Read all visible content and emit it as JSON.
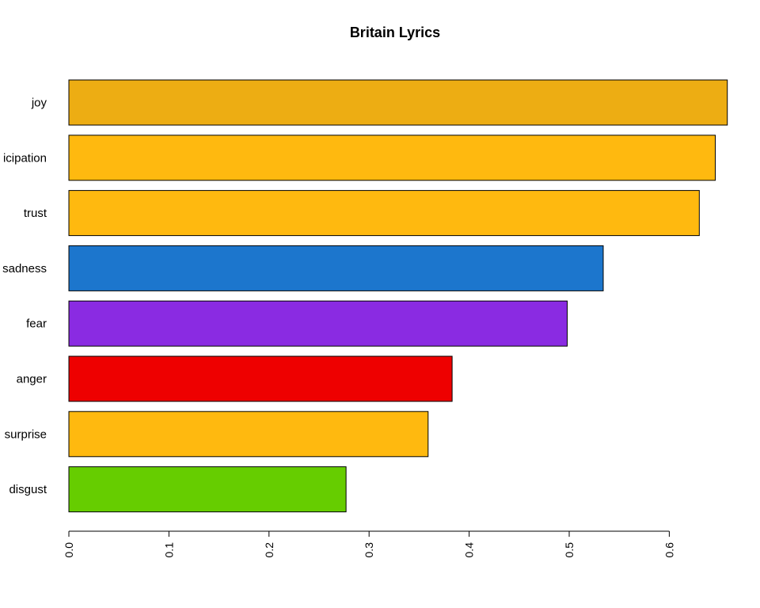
{
  "chart_data": {
    "type": "bar",
    "orientation": "horizontal",
    "title": "Britain Lyrics",
    "xlabel": "",
    "ylabel": "",
    "categories": [
      "joy",
      "anticipation",
      "trust",
      "sadness",
      "fear",
      "anger",
      "surprise",
      "disgust"
    ],
    "category_display": [
      "joy",
      "icipation",
      "trust",
      "sadness",
      "fear",
      "anger",
      "surprise",
      "disgust"
    ],
    "values": [
      0.658,
      0.646,
      0.63,
      0.534,
      0.498,
      0.383,
      0.359,
      0.277
    ],
    "colors": [
      "#EDAD13",
      "#FFB90F",
      "#FFB90F",
      "#1C76CD",
      "#8A2BE2",
      "#EE0000",
      "#FFB90F",
      "#66CD00"
    ],
    "xlim": [
      0,
      0.66
    ],
    "xticks": [
      0,
      0.1,
      0.2,
      0.3,
      0.4,
      0.5,
      0.6
    ],
    "xtick_labels": [
      "0.0",
      "0.1",
      "0.2",
      "0.3",
      "0.4",
      "0.5",
      "0.6"
    ],
    "grid": false,
    "legend": "none"
  }
}
